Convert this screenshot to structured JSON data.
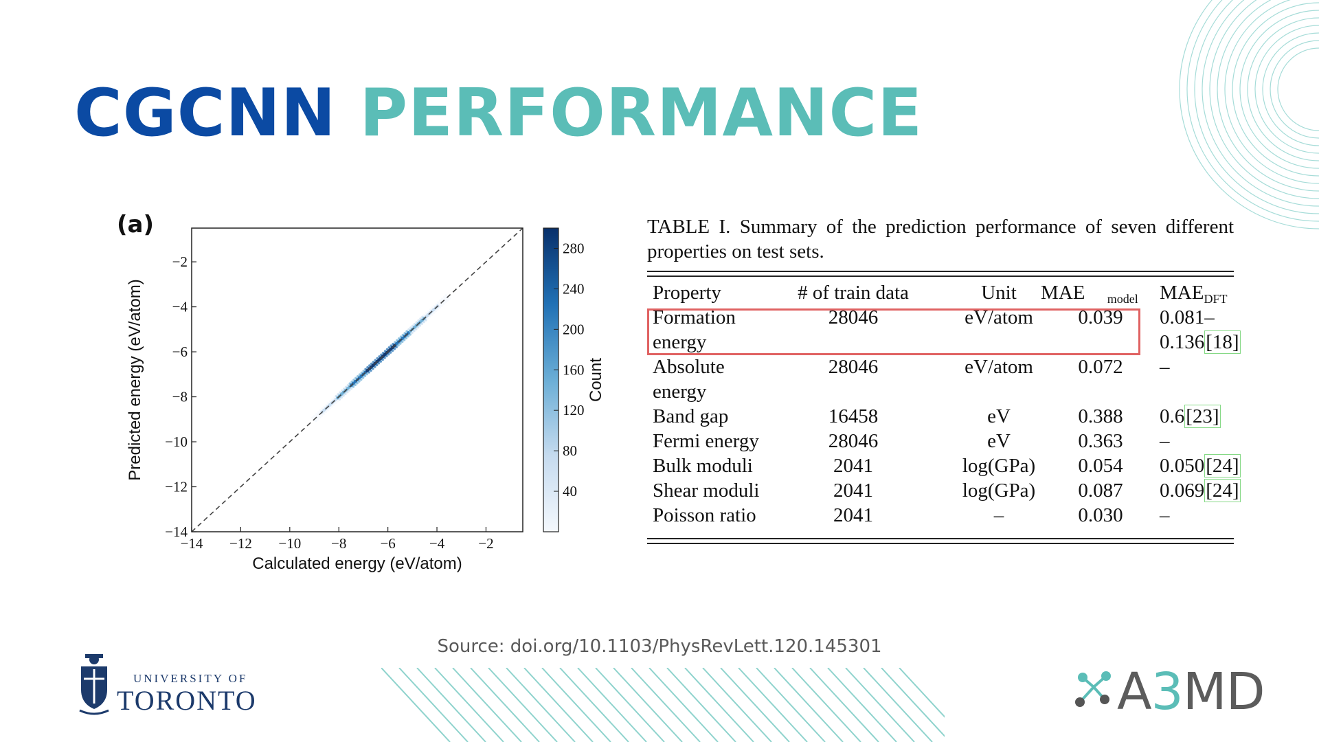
{
  "slide": {
    "title_part1": "CGCNN",
    "title_part2": "PERFORMANCE",
    "source": "Source: doi.org/10.1103/PhysRevLett.120.145301",
    "colors": {
      "title_dark": "#0b4aa3",
      "title_teal": "#5bbdb7",
      "highlight": "#e06262"
    }
  },
  "chart_data": {
    "type": "heatmap",
    "panel_label": "(a)",
    "xlabel": "Calculated energy (eV/atom)",
    "ylabel": "Predicted energy (eV/atom)",
    "xlim": [
      -14,
      -0.5
    ],
    "ylim": [
      -14,
      -0.5
    ],
    "x_ticks": [
      "−14",
      "−12",
      "−10",
      "−8",
      "−6",
      "−4",
      "−2"
    ],
    "y_ticks": [
      "−14",
      "−12",
      "−10",
      "−8",
      "−6",
      "−4",
      "−2"
    ],
    "x_tick_values": [
      -14,
      -12,
      -10,
      -8,
      -6,
      -4,
      -2
    ],
    "y_tick_values": [
      -14,
      -12,
      -10,
      -8,
      -6,
      -4,
      -2
    ],
    "reference_line": "y = x (dashed)",
    "density_center": [
      -6.3,
      -6.3
    ],
    "density_extent": [
      -9,
      -3.5
    ],
    "colorbar": {
      "label": "Count",
      "min": 0,
      "max": 300,
      "ticks": [
        "40",
        "80",
        "120",
        "160",
        "200",
        "240",
        "280"
      ],
      "tick_values": [
        40,
        80,
        120,
        160,
        200,
        240,
        280
      ],
      "colormap": [
        "#f4f8fd",
        "#c6dbef",
        "#6baed6",
        "#2171b5",
        "#08306b"
      ]
    }
  },
  "table": {
    "caption": "TABLE I. Summary of the prediction performance of seven different properties on test sets.",
    "headers": {
      "property": "Property",
      "train": "# of train data",
      "unit": "Unit",
      "mae_model": "MAE",
      "mae_model_sub": "model",
      "mae_dft": "MAE",
      "mae_dft_sub": "DFT"
    },
    "rows": [
      {
        "property": "Formation",
        "train": "28046",
        "unit": "eV/atom",
        "mae_model": "0.039",
        "mae_dft": "0.081–",
        "cite": ""
      },
      {
        "property": "energy",
        "train": "",
        "unit": "",
        "mae_model": "",
        "mae_dft": "0.136",
        "cite": "[18]"
      },
      {
        "property": "Absolute",
        "train": "28046",
        "unit": "eV/atom",
        "mae_model": "0.072",
        "mae_dft": "–",
        "cite": ""
      },
      {
        "property": "energy",
        "train": "",
        "unit": "",
        "mae_model": "",
        "mae_dft": "",
        "cite": ""
      },
      {
        "property": "Band gap",
        "train": "16458",
        "unit": "eV",
        "mae_model": "0.388",
        "mae_dft": "0.6",
        "cite": "[23]"
      },
      {
        "property": "Fermi energy",
        "train": "28046",
        "unit": "eV",
        "mae_model": "0.363",
        "mae_dft": "–",
        "cite": ""
      },
      {
        "property": "Bulk moduli",
        "train": "2041",
        "unit": "log(GPa)",
        "mae_model": "0.054",
        "mae_dft": "0.050",
        "cite": "[24]"
      },
      {
        "property": "Shear moduli",
        "train": "2041",
        "unit": "log(GPa)",
        "mae_model": "0.087",
        "mae_dft": "0.069",
        "cite": "[24]"
      },
      {
        "property": "Poisson ratio",
        "train": "2041",
        "unit": "–",
        "mae_model": "0.030",
        "mae_dft": "–",
        "cite": ""
      }
    ]
  },
  "logos": {
    "uoft_small": "UNIVERSITY OF",
    "uoft_big": "TORONTO",
    "a3md_a": "A",
    "a3md_3": "3",
    "a3md_md": "MD"
  }
}
